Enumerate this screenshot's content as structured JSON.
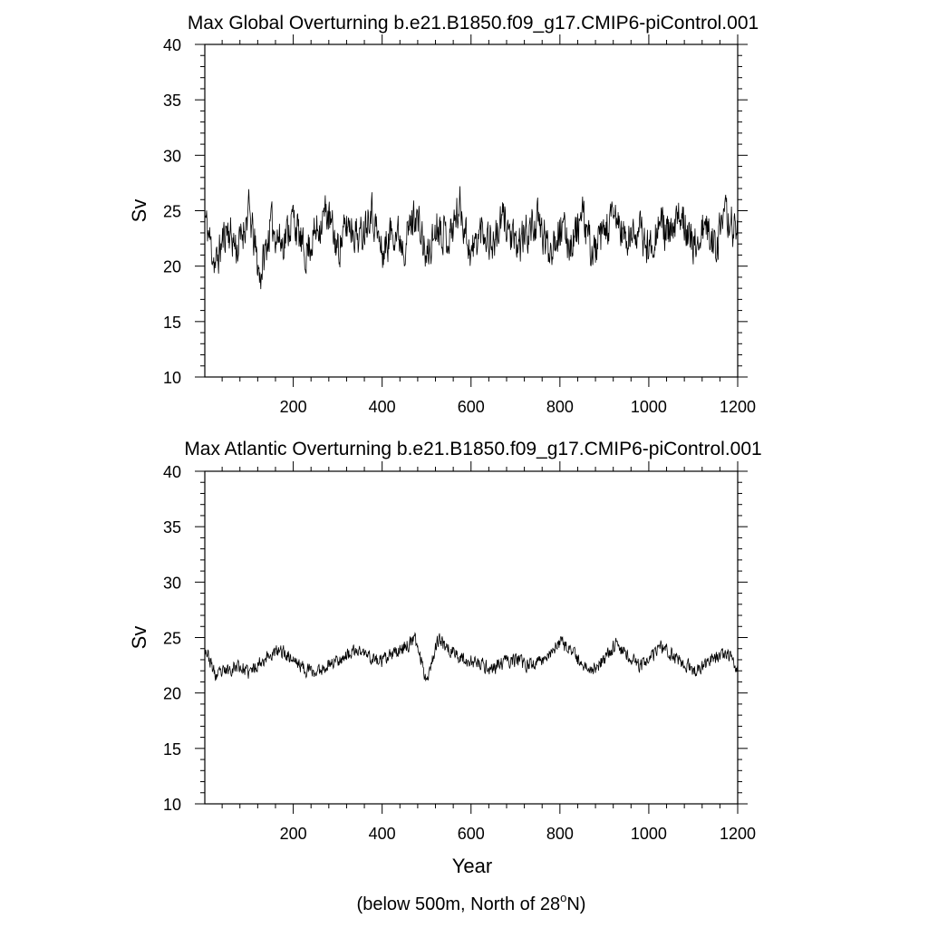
{
  "chart_data": [
    {
      "type": "line",
      "title": "Max Global Overturning b.e21.B1850.f09_g17.CMIP6-piControl.001",
      "ylabel": "Sv",
      "xlabel": "",
      "xlim": [
        1,
        1200
      ],
      "ylim": [
        10,
        40
      ],
      "xticks": [
        200,
        400,
        600,
        800,
        1000,
        1200
      ],
      "yticks": [
        10,
        15,
        20,
        25,
        30,
        35,
        40
      ],
      "grid": false,
      "legend": "none",
      "color": "#000000",
      "series_summary": {
        "mean": 23.0,
        "typical_range": [
          19.5,
          26.5
        ],
        "min": 17.0,
        "max": 28.4
      },
      "x": [
        1,
        25,
        50,
        75,
        100,
        125,
        150,
        175,
        200,
        225,
        250,
        275,
        300,
        325,
        350,
        375,
        400,
        425,
        450,
        475,
        500,
        525,
        550,
        575,
        600,
        625,
        650,
        675,
        700,
        725,
        750,
        775,
        800,
        825,
        850,
        875,
        900,
        925,
        950,
        975,
        1000,
        1025,
        1050,
        1075,
        1100,
        1125,
        1150,
        1175,
        1200
      ],
      "values": [
        24.5,
        20.0,
        23.5,
        21.5,
        25.0,
        19.0,
        23.8,
        22.0,
        24.5,
        21.0,
        23.0,
        25.0,
        21.5,
        24.0,
        22.5,
        25.5,
        21.0,
        23.5,
        22.0,
        25.0,
        20.5,
        24.0,
        22.5,
        25.5,
        21.0,
        23.5,
        22.0,
        24.5,
        21.5,
        23.0,
        24.0,
        21.5,
        23.5,
        22.0,
        24.5,
        21.0,
        23.0,
        24.5,
        22.0,
        23.5,
        21.5,
        24.0,
        22.5,
        25.0,
        21.5,
        23.5,
        22.0,
        24.5,
        23.0
      ]
    },
    {
      "type": "line",
      "title": "Max Atlantic Overturning b.e21.B1850.f09_g17.CMIP6-piControl.001",
      "ylabel": "Sv",
      "xlabel": "Year",
      "xlim": [
        1,
        1200
      ],
      "ylim": [
        10,
        40
      ],
      "xticks": [
        200,
        400,
        600,
        800,
        1000,
        1200
      ],
      "yticks": [
        10,
        15,
        20,
        25,
        30,
        35,
        40
      ],
      "grid": false,
      "legend": "none",
      "color": "#000000",
      "series_summary": {
        "mean": 22.8,
        "typical_range": [
          21.0,
          24.5
        ],
        "min": 20.2,
        "max": 25.5
      },
      "x": [
        1,
        25,
        50,
        75,
        100,
        125,
        150,
        175,
        200,
        225,
        250,
        275,
        300,
        325,
        350,
        375,
        400,
        425,
        450,
        475,
        500,
        525,
        550,
        575,
        600,
        625,
        650,
        675,
        700,
        725,
        750,
        775,
        800,
        825,
        850,
        875,
        900,
        925,
        950,
        975,
        1000,
        1025,
        1050,
        1075,
        1100,
        1125,
        1150,
        1175,
        1200
      ],
      "values": [
        24.2,
        21.5,
        22.0,
        22.5,
        21.8,
        22.8,
        23.5,
        23.8,
        23.0,
        22.2,
        21.8,
        22.5,
        23.0,
        23.5,
        23.8,
        23.2,
        22.8,
        23.5,
        24.2,
        24.8,
        21.2,
        24.8,
        24.0,
        23.2,
        22.8,
        22.5,
        22.2,
        22.8,
        23.0,
        22.5,
        22.8,
        23.5,
        24.5,
        23.8,
        22.5,
        22.2,
        23.0,
        24.5,
        23.5,
        22.5,
        22.8,
        24.2,
        23.5,
        22.8,
        22.0,
        22.5,
        23.2,
        23.5,
        22.2
      ]
    }
  ],
  "footer": {
    "note_prefix": "(below 500m, North of 28",
    "note_superscript": "o",
    "note_suffix": "N)"
  }
}
